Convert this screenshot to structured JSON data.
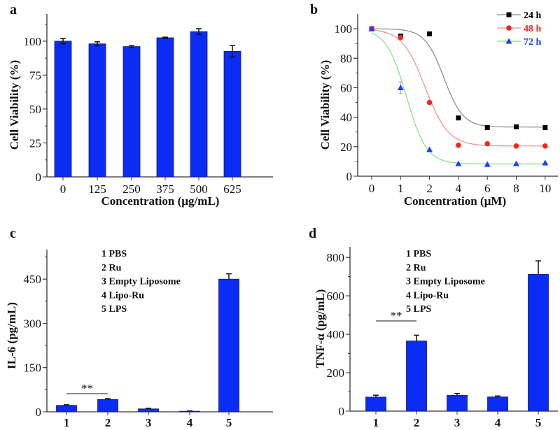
{
  "chart_data": [
    {
      "panel": "a",
      "type": "bar",
      "xlabel": "Concentration (µg/mL)",
      "ylabel": "Cell Viability (%)",
      "categories": [
        "0",
        "125",
        "250",
        "375",
        "500",
        "625"
      ],
      "values": [
        100,
        98,
        96,
        102.5,
        107,
        92.5
      ],
      "errors": [
        2,
        1.5,
        0.8,
        0.4,
        2.2,
        4.2
      ],
      "yticks": [
        0,
        25,
        50,
        75,
        100
      ],
      "ylim": [
        0,
        120
      ],
      "bar_color": "#0a2cf5"
    },
    {
      "panel": "b",
      "type": "line",
      "xlabel": "Concentration (µM)",
      "ylabel": "Cell Viability (%)",
      "categories": [
        "0",
        "1",
        "2",
        "4",
        "6",
        "8",
        "10"
      ],
      "yticks": [
        0,
        20,
        40,
        60,
        80,
        100
      ],
      "ylim": [
        0,
        110
      ],
      "legend_position": "top-right",
      "series": [
        {
          "name": "24 h",
          "marker": "square",
          "color": "#000000",
          "line_color": "#888888",
          "values": [
            100,
            95,
            96.5,
            39.5,
            33,
            33.5,
            33
          ],
          "errors": [
            0.5,
            0.5,
            0.5,
            0.5,
            0.5,
            0.5,
            0.5
          ],
          "fit": {
            "top": 100,
            "bottom": 33.3,
            "mid_index": 2.5,
            "slope": 0.33
          }
        },
        {
          "name": "48 h",
          "marker": "circle",
          "color": "#ff2020",
          "line_color": "#f08a8a",
          "values": [
            100,
            94,
            50,
            21,
            22,
            20.5,
            20.5
          ],
          "errors": [
            0.5,
            1,
            0.5,
            0.5,
            0.5,
            0.5,
            0.5
          ],
          "fit": {
            "top": 100,
            "bottom": 20.5,
            "mid_index": 1.85,
            "slope": 0.4
          }
        },
        {
          "name": "72 h",
          "marker": "triangle",
          "color": "#1a3cff",
          "line_color": "#7fe07f",
          "values": [
            100,
            60,
            18,
            8.5,
            8,
            8.5,
            9
          ],
          "errors": [
            1,
            4,
            0.5,
            0.5,
            0.5,
            0.5,
            0.5
          ],
          "fit": {
            "top": 100,
            "bottom": 8.3,
            "mid_index": 1.2,
            "slope": 0.35
          }
        }
      ]
    },
    {
      "panel": "c",
      "type": "bar",
      "xlabel": "",
      "ylabel": "IL-6 (pg/mL)",
      "categories": [
        "1",
        "2",
        "3",
        "4",
        "5"
      ],
      "values": [
        22,
        42,
        10,
        2,
        450
      ],
      "errors": [
        2,
        3,
        2,
        1,
        18
      ],
      "yticks": [
        0,
        150,
        300,
        450
      ],
      "ylim": [
        0,
        550
      ],
      "bar_color": "#0a2cf5",
      "significance": {
        "from": 1,
        "to": 2,
        "label": "**"
      },
      "legend": [
        "1 PBS",
        "2 Ru",
        "3 Empty Liposome",
        "4 Lipo-Ru",
        "5 LPS"
      ]
    },
    {
      "panel": "d",
      "type": "bar",
      "xlabel": "",
      "ylabel": "TNF-α (pg/mL)",
      "categories": [
        "1",
        "2",
        "3",
        "4",
        "5"
      ],
      "values": [
        73,
        365,
        82,
        74,
        712
      ],
      "errors": [
        10,
        30,
        10,
        5,
        70
      ],
      "yticks": [
        0,
        200,
        400,
        600,
        800
      ],
      "ylim": [
        0,
        855
      ],
      "bar_color": "#0a2cf5",
      "significance": {
        "from": 1,
        "to": 2,
        "label": "**"
      },
      "legend": [
        "1 PBS",
        "2 Ru",
        "3 Empty Liposome",
        "4 Lipo-Ru",
        "5 LPS"
      ]
    }
  ]
}
